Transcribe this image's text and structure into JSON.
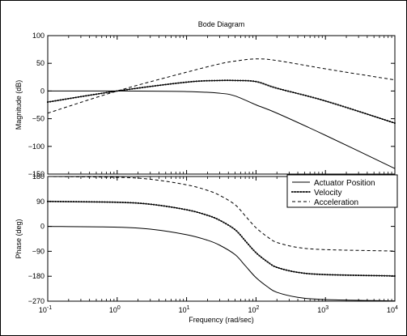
{
  "chart_data": {
    "type": "line",
    "title": "Bode Diagram",
    "xlabel": "Frequency  (rad/sec)",
    "x_scale": "log",
    "xlim": [
      0.1,
      10000
    ],
    "x_ticks": [
      0.1,
      1,
      10,
      100,
      1000,
      10000
    ],
    "x_tick_labels": [
      {
        "base": "10",
        "exp": "-1"
      },
      {
        "base": "10",
        "exp": "0"
      },
      {
        "base": "10",
        "exp": "1"
      },
      {
        "base": "10",
        "exp": "2"
      },
      {
        "base": "10",
        "exp": "3"
      },
      {
        "base": "10",
        "exp": "4"
      }
    ],
    "legend": {
      "placement": "lower panel top-right",
      "entries": [
        {
          "label": "Actuator Position",
          "style": "solid"
        },
        {
          "label": "Velocity",
          "style": "solid-dotted"
        },
        {
          "label": "Acceleration",
          "style": "dashed"
        }
      ]
    },
    "panels": [
      {
        "ylabel": "Magnitude (dB)",
        "ylim": [
          -150,
          100
        ],
        "y_ticks": [
          100,
          50,
          0,
          -50,
          -100,
          -150
        ],
        "y_tick_labels": [
          "100",
          "50",
          "0",
          "−50",
          "−100",
          "−150"
        ],
        "series": [
          {
            "name": "Actuator Position",
            "x": [
              0.1,
              1,
              10,
              30,
              50,
              100,
              200,
              1000,
              10000
            ],
            "y": [
              0,
              0,
              -1,
              -4,
              -9,
              -25,
              -40,
              -80,
              -140
            ]
          },
          {
            "name": "Velocity",
            "x": [
              0.1,
              1,
              10,
              30,
              50,
              100,
              200,
              1000,
              10000
            ],
            "y": [
              -20,
              0,
              16,
              19,
              19,
              17,
              5,
              -18,
              -58
            ]
          },
          {
            "name": "Acceleration",
            "x": [
              0.1,
              1,
              10,
              30,
              50,
              100,
              200,
              1000,
              10000
            ],
            "y": [
              -40,
              0,
              34,
              49,
              54,
              58,
              55,
              40,
              20
            ]
          }
        ]
      },
      {
        "ylabel": "Phase (deg)",
        "ylim": [
          -270,
          180
        ],
        "y_ticks": [
          180,
          90,
          0,
          -90,
          -180,
          -270
        ],
        "y_tick_labels": [
          "180",
          "90",
          "0",
          "−90",
          "−180",
          "−270"
        ],
        "series": [
          {
            "name": "Actuator Position",
            "x": [
              0.1,
              1,
              3,
              10,
              20,
              30,
              50,
              70,
              100,
              150,
              200,
              400,
              1000,
              10000
            ],
            "y": [
              0,
              -3,
              -10,
              -30,
              -50,
              -68,
              -102,
              -142,
              -185,
              -220,
              -238,
              -256,
              -264,
              -269
            ]
          },
          {
            "name": "Velocity",
            "x": [
              0.1,
              1,
              3,
              10,
              20,
              30,
              50,
              70,
              100,
              150,
              200,
              400,
              1000,
              10000
            ],
            "y": [
              90,
              87,
              80,
              60,
              40,
              22,
              -12,
              -52,
              -95,
              -130,
              -148,
              -166,
              -174,
              -179
            ]
          },
          {
            "name": "Acceleration",
            "x": [
              0.1,
              1,
              3,
              10,
              20,
              30,
              50,
              70,
              100,
              150,
              200,
              400,
              1000,
              10000
            ],
            "y": [
              180,
              177,
              170,
              150,
              130,
              112,
              78,
              38,
              -5,
              -40,
              -58,
              -76,
              -84,
              -89
            ]
          }
        ]
      }
    ]
  }
}
